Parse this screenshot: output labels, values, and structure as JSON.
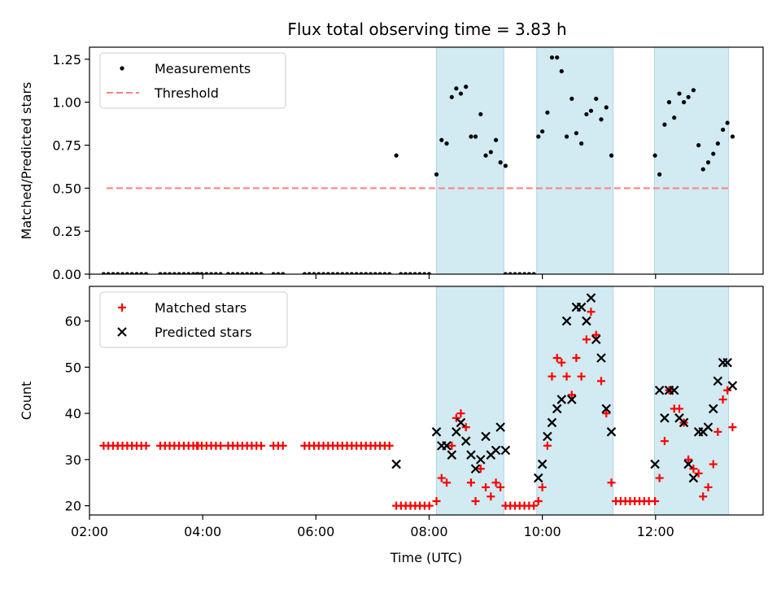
{
  "title": "Flux total observing time = 3.83 h",
  "colors": {
    "shade": "#add8e6",
    "threshold": "#ff7f7f",
    "matched": "#ff0000",
    "predicted": "#000000",
    "measurements": "#000000"
  },
  "chart_data": [
    {
      "type": "scatter",
      "ylabel": "Matched/Predicted stars",
      "xlim": [
        2.0,
        13.9
      ],
      "ylim": [
        0.0,
        1.32
      ],
      "grid": false,
      "legend_position": "top-left",
      "y_ticks": [
        "0.00",
        "0.25",
        "0.50",
        "0.75",
        "1.00",
        "1.25"
      ],
      "y_tick_values": [
        0.0,
        0.25,
        0.5,
        0.75,
        1.0,
        1.25
      ],
      "shaded_intervals": [
        [
          8.13,
          9.32
        ],
        [
          9.9,
          11.25
        ],
        [
          11.98,
          13.29
        ]
      ],
      "threshold": {
        "name": "Threshold",
        "value": 0.5,
        "x_range": [
          2.3,
          13.3
        ]
      },
      "series": [
        {
          "name": "Measurements",
          "marker": "dot",
          "zero_runs": [
            [
              2.25,
              3.05,
              0.0833
            ],
            [
              3.25,
              3.95,
              0.0833
            ],
            [
              3.9,
              4.35,
              0.0833
            ],
            [
              4.45,
              5.05,
              0.0833
            ],
            [
              5.25,
              5.45,
              0.0833
            ],
            [
              5.8,
              7.35,
              0.0833
            ],
            [
              7.5,
              8.05,
              0.0833
            ],
            [
              9.35,
              9.9,
              0.0833
            ]
          ],
          "x": [
            7.42,
            8.13,
            8.22,
            8.31,
            8.4,
            8.48,
            8.56,
            8.65,
            8.74,
            8.82,
            8.91,
            9.0,
            9.09,
            9.18,
            9.26,
            9.35,
            9.93,
            10.0,
            10.09,
            10.17,
            10.26,
            10.34,
            10.43,
            10.52,
            10.6,
            10.69,
            10.78,
            10.86,
            10.95,
            11.04,
            11.13,
            11.22,
            11.99,
            12.07,
            12.16,
            12.24,
            12.33,
            12.42,
            12.5,
            12.58,
            12.67,
            12.76,
            12.84,
            12.93,
            13.02,
            13.1,
            13.19,
            13.27,
            13.36
          ],
          "y": [
            0.69,
            0.58,
            0.78,
            0.76,
            1.03,
            1.08,
            1.05,
            1.09,
            0.8,
            0.8,
            0.93,
            0.69,
            0.71,
            0.78,
            0.65,
            0.63,
            0.8,
            0.83,
            0.94,
            1.26,
            1.26,
            1.18,
            0.8,
            1.02,
            0.82,
            0.76,
            0.93,
            0.95,
            1.02,
            0.9,
            0.97,
            0.69,
            0.69,
            0.58,
            0.87,
            1.0,
            0.91,
            1.05,
            1.0,
            1.03,
            1.07,
            0.75,
            0.61,
            0.65,
            0.7,
            0.76,
            0.84,
            0.88,
            0.8
          ]
        }
      ]
    },
    {
      "type": "scatter",
      "ylabel": "Count",
      "xlabel": "Time (UTC)",
      "xlim": [
        2.0,
        13.9
      ],
      "ylim": [
        18,
        67.5
      ],
      "grid": false,
      "legend_position": "top-left",
      "x_ticks": [
        "02:00",
        "04:00",
        "06:00",
        "08:00",
        "10:00",
        "12:00"
      ],
      "x_tick_values": [
        2,
        4,
        6,
        8,
        10,
        12
      ],
      "y_ticks": [
        "20",
        "30",
        "40",
        "50",
        "60"
      ],
      "y_tick_values": [
        20,
        30,
        40,
        50,
        60
      ],
      "shaded_intervals": [
        [
          8.13,
          9.32
        ],
        [
          9.9,
          11.25
        ],
        [
          11.98,
          13.29
        ]
      ],
      "series": [
        {
          "name": "Matched stars",
          "marker": "plus",
          "const_runs": [
            [
              2.25,
              3.05,
              0.0833,
              33
            ],
            [
              3.25,
              3.95,
              0.0833,
              33
            ],
            [
              3.9,
              4.35,
              0.0833,
              33
            ],
            [
              4.45,
              5.05,
              0.0833,
              33
            ],
            [
              5.25,
              5.45,
              0.0833,
              33
            ],
            [
              5.8,
              7.35,
              0.0833,
              33
            ],
            [
              7.42,
              8.05,
              0.0833,
              20
            ],
            [
              9.35,
              9.9,
              0.0833,
              20
            ],
            [
              11.3,
              11.95,
              0.0833,
              21
            ]
          ],
          "x": [
            8.13,
            8.22,
            8.31,
            8.4,
            8.48,
            8.56,
            8.65,
            8.74,
            8.82,
            8.91,
            9.0,
            9.09,
            9.18,
            9.26,
            9.93,
            10.0,
            10.09,
            10.17,
            10.26,
            10.34,
            10.43,
            10.52,
            10.6,
            10.69,
            10.78,
            10.86,
            10.95,
            11.04,
            11.13,
            11.22,
            11.99,
            12.07,
            12.16,
            12.24,
            12.33,
            12.42,
            12.5,
            12.58,
            12.67,
            12.76,
            12.84,
            12.93,
            13.02,
            13.1,
            13.19,
            13.27,
            13.36
          ],
          "y": [
            21,
            26,
            25,
            33,
            39,
            40,
            37,
            25,
            21,
            28,
            24,
            22,
            25,
            24,
            21,
            24,
            33,
            48,
            52,
            51,
            48,
            44,
            52,
            48,
            56,
            62,
            57,
            47,
            40,
            25,
            21,
            26,
            34,
            45,
            41,
            41,
            38,
            30,
            28,
            27,
            22,
            24,
            29,
            36,
            43,
            45,
            37
          ]
        },
        {
          "name": "Predicted stars",
          "marker": "x",
          "x": [
            7.42,
            8.13,
            8.22,
            8.31,
            8.4,
            8.48,
            8.56,
            8.65,
            8.74,
            8.82,
            8.91,
            9.0,
            9.09,
            9.18,
            9.26,
            9.35,
            9.93,
            10.0,
            10.09,
            10.17,
            10.26,
            10.34,
            10.43,
            10.52,
            10.6,
            10.69,
            10.78,
            10.86,
            10.95,
            11.04,
            11.13,
            11.22,
            11.99,
            12.07,
            12.16,
            12.24,
            12.33,
            12.42,
            12.5,
            12.58,
            12.67,
            12.76,
            12.84,
            12.93,
            13.02,
            13.1,
            13.19,
            13.27,
            13.36
          ],
          "y": [
            29,
            36,
            33,
            33,
            31,
            36,
            38,
            34,
            31,
            28,
            30,
            35,
            31,
            32,
            37,
            32,
            26,
            29,
            35,
            38,
            41,
            43,
            60,
            43,
            63,
            63,
            60,
            65,
            56,
            52,
            41,
            36,
            29,
            45,
            39,
            45,
            45,
            39,
            38,
            29,
            26,
            36,
            36,
            37,
            41,
            47,
            51,
            51,
            46
          ]
        }
      ]
    }
  ]
}
